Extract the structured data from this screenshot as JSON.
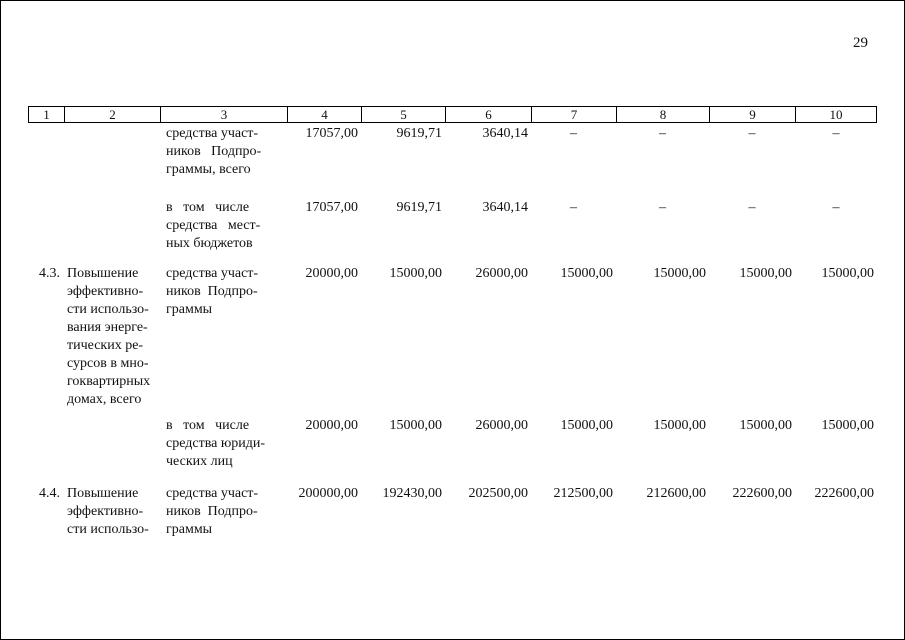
{
  "page": {
    "number": "29"
  },
  "table": {
    "columns": [
      "1",
      "2",
      "3",
      "4",
      "5",
      "6",
      "7",
      "8",
      "9",
      "10"
    ],
    "rows": [
      {
        "num": "",
        "title": "",
        "source": "средства участ-\nников   Подпро-\nграммы, всего",
        "values": [
          "17057,00",
          "9619,71",
          "3640,14",
          "–",
          "–",
          "–",
          "–"
        ]
      },
      {
        "num": "",
        "title": "",
        "source": "в   том   числе\nсредства   мест-\nных бюджетов",
        "values": [
          "17057,00",
          "9619,71",
          "3640,14",
          "–",
          "–",
          "–",
          "–"
        ]
      },
      {
        "num": "4.3.",
        "title": "Повышение\nэффективно-\nсти использо-\nвания энерге-\nтических ре-\nсурсов в мно-\nгоквартирных\nдомах, всего",
        "source": "средства участ-\nников  Подпро-\nграммы",
        "values": [
          "20000,00",
          "15000,00",
          "26000,00",
          "15000,00",
          "15000,00",
          "15000,00",
          "15000,00"
        ]
      },
      {
        "num": "",
        "title": "",
        "source": "в   том   числе\nсредства юриди-\nческих лиц",
        "values": [
          "20000,00",
          "15000,00",
          "26000,00",
          "15000,00",
          "15000,00",
          "15000,00",
          "15000,00"
        ]
      },
      {
        "num": "4.4.",
        "title": "Повышение\nэффективно-\nсти использо-",
        "source": "средства участ-\nников  Подпро-\nграммы",
        "values": [
          "200000,00",
          "192430,00",
          "202500,00",
          "212500,00",
          "212600,00",
          "222600,00",
          "222600,00"
        ]
      }
    ]
  }
}
